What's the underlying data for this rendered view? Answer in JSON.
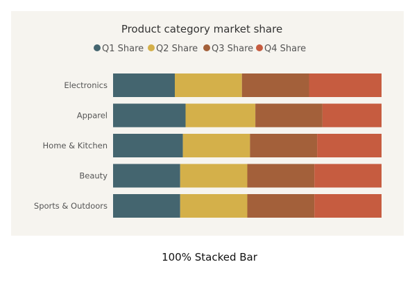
{
  "chart_data": {
    "type": "bar",
    "stacking": "percent",
    "orientation": "horizontal",
    "title": "Product category market share",
    "categories": [
      "Electronics",
      "Apparel",
      "Home & Kitchen",
      "Beauty",
      "Sports & Outdoors"
    ],
    "series": [
      {
        "name": "Q1 Share",
        "color": "#44656f",
        "values": [
          23,
          27,
          26,
          25,
          25
        ]
      },
      {
        "name": "Q2 Share",
        "color": "#d4b04a",
        "values": [
          25,
          26,
          25,
          25,
          25
        ]
      },
      {
        "name": "Q3 Share",
        "color": "#a3603a",
        "values": [
          25,
          25,
          25,
          25,
          25
        ]
      },
      {
        "name": "Q4 Share",
        "color": "#c65c40",
        "values": [
          27,
          22,
          24,
          25,
          25
        ]
      }
    ],
    "xlim": [
      0,
      100
    ],
    "grid": false,
    "legend": "top"
  },
  "caption": "100% Stacked Bar",
  "colors": {
    "panel_background": "#f6f4ef",
    "label_text": "#555555",
    "title_text": "#333333"
  }
}
